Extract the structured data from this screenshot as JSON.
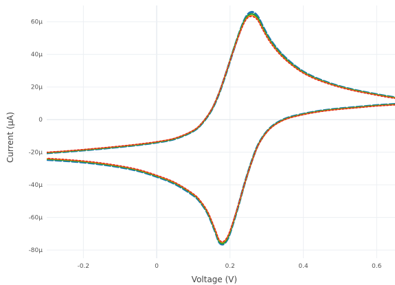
{
  "chart_data": {
    "type": "line",
    "title": "",
    "xlabel": "Voltage (V)",
    "ylabel": "Current (µA)",
    "xlim": [
      -0.3,
      0.65
    ],
    "ylim": [
      -8.5e-05,
      7e-05
    ],
    "grid": true,
    "legend": "none",
    "x_ticks": [
      {
        "value": -0.2,
        "label": "-0.2"
      },
      {
        "value": 0,
        "label": "0"
      },
      {
        "value": 0.2,
        "label": "0.2"
      },
      {
        "value": 0.4,
        "label": "0.4"
      },
      {
        "value": 0.6,
        "label": "0.6"
      }
    ],
    "y_ticks": [
      {
        "value": 6e-05,
        "label": "60µ"
      },
      {
        "value": 4e-05,
        "label": "40µ"
      },
      {
        "value": 2e-05,
        "label": "20µ"
      },
      {
        "value": 0,
        "label": "0"
      },
      {
        "value": -2e-05,
        "label": "-20µ"
      },
      {
        "value": -4e-05,
        "label": "-40µ"
      },
      {
        "value": -6e-05,
        "label": "-60µ"
      },
      {
        "value": -8e-05,
        "label": "-80µ"
      }
    ],
    "series": [
      {
        "color": "#1f77b4",
        "dash": "8 4",
        "width": 3.2,
        "forward": {
          "x": [
            -0.3,
            -0.25,
            -0.2,
            -0.15,
            -0.1,
            -0.05,
            0,
            0.05,
            0.1,
            0.125,
            0.15,
            0.17,
            0.19,
            0.21,
            0.23,
            0.245,
            0.26,
            0.275,
            0.29,
            0.31,
            0.34,
            0.38,
            0.42,
            0.47,
            0.52,
            0.57,
            0.62,
            0.65
          ],
          "y": [
            -2.05e-05,
            -1.97e-05,
            -1.88e-05,
            -1.78e-05,
            -1.67e-05,
            -1.55e-05,
            -1.4e-05,
            -1.18e-05,
            -7e-06,
            -2e-06,
            6e-06,
            1.6e-05,
            2.9e-05,
            4.3e-05,
            5.6e-05,
            6.35e-05,
            6.6e-05,
            6.35e-05,
            5.7e-05,
            4.9e-05,
            4.05e-05,
            3.25e-05,
            2.7e-05,
            2.25e-05,
            1.92e-05,
            1.68e-05,
            1.47e-05,
            1.36e-05
          ]
        },
        "reverse": {
          "x": [
            0.65,
            0.6,
            0.55,
            0.5,
            0.45,
            0.4,
            0.35,
            0.31,
            0.28,
            0.26,
            0.24,
            0.22,
            0.2,
            0.19,
            0.18,
            0.17,
            0.16,
            0.14,
            0.12,
            0.1,
            0.05,
            0,
            -0.05,
            -0.1,
            -0.15,
            -0.2,
            -0.25,
            -0.3
          ],
          "y": [
            9.5e-06,
            8.8e-06,
            7.8e-06,
            6.8e-06,
            5.5e-06,
            3.5e-06,
            5e-07,
            -5e-06,
            -1.4e-05,
            -2.5e-05,
            -3.9e-05,
            -5.5e-05,
            -6.95e-05,
            -7.45e-05,
            -7.65e-05,
            -7.5e-05,
            -6.9e-05,
            -5.8e-05,
            -5.1e-05,
            -4.65e-05,
            -3.95e-05,
            -3.5e-05,
            -3.15e-05,
            -2.92e-05,
            -2.75e-05,
            -2.62e-05,
            -2.53e-05,
            -2.46e-05
          ]
        }
      },
      {
        "color": "#2ca02c",
        "dash": "",
        "width": 2.2,
        "forward": {
          "x": [
            -0.3,
            -0.25,
            -0.2,
            -0.15,
            -0.1,
            -0.05,
            0,
            0.05,
            0.1,
            0.125,
            0.15,
            0.17,
            0.19,
            0.21,
            0.23,
            0.245,
            0.26,
            0.275,
            0.29,
            0.31,
            0.34,
            0.38,
            0.42,
            0.47,
            0.52,
            0.57,
            0.62,
            0.65
          ],
          "y": [
            -2.03e-05,
            -1.95e-05,
            -1.86e-05,
            -1.76e-05,
            -1.65e-05,
            -1.53e-05,
            -1.38e-05,
            -1.16e-05,
            -6.8e-06,
            -1.8e-06,
            6.2e-06,
            1.62e-05,
            2.92e-05,
            4.32e-05,
            5.58e-05,
            6.28e-05,
            6.48e-05,
            6.25e-05,
            5.6e-05,
            4.82e-05,
            3.98e-05,
            3.2e-05,
            2.66e-05,
            2.22e-05,
            1.9e-05,
            1.66e-05,
            1.45e-05,
            1.34e-05
          ]
        },
        "reverse": {
          "x": [
            0.65,
            0.6,
            0.55,
            0.5,
            0.45,
            0.4,
            0.35,
            0.31,
            0.28,
            0.26,
            0.24,
            0.22,
            0.2,
            0.19,
            0.18,
            0.17,
            0.16,
            0.14,
            0.12,
            0.1,
            0.05,
            0,
            -0.05,
            -0.1,
            -0.15,
            -0.2,
            -0.25,
            -0.3
          ],
          "y": [
            9.3e-06,
            8.6e-06,
            7.6e-06,
            6.6e-06,
            5.3e-06,
            3.3e-06,
            3e-07,
            -5.2e-06,
            -1.42e-05,
            -2.52e-05,
            -3.92e-05,
            -5.48e-05,
            -6.9e-05,
            -7.4e-05,
            -7.6e-05,
            -7.45e-05,
            -6.85e-05,
            -5.75e-05,
            -5.05e-05,
            -4.6e-05,
            -3.9e-05,
            -3.46e-05,
            -3.11e-05,
            -2.88e-05,
            -2.71e-05,
            -2.58e-05,
            -2.49e-05,
            -2.42e-05
          ]
        }
      },
      {
        "color": "#ff7f0e",
        "dash": "",
        "width": 1.6,
        "forward": {
          "x": [
            -0.3,
            -0.25,
            -0.2,
            -0.15,
            -0.1,
            -0.05,
            0,
            0.05,
            0.1,
            0.125,
            0.15,
            0.17,
            0.19,
            0.21,
            0.23,
            0.245,
            0.26,
            0.275,
            0.29,
            0.31,
            0.34,
            0.38,
            0.42,
            0.47,
            0.52,
            0.57,
            0.62,
            0.65
          ],
          "y": [
            -2.01e-05,
            -1.93e-05,
            -1.84e-05,
            -1.74e-05,
            -1.63e-05,
            -1.51e-05,
            -1.36e-05,
            -1.14e-05,
            -6.6e-06,
            -1.6e-06,
            6.4e-06,
            1.64e-05,
            2.94e-05,
            4.28e-05,
            5.52e-05,
            6.2e-05,
            6.38e-05,
            6.15e-05,
            5.52e-05,
            4.76e-05,
            3.93e-05,
            3.16e-05,
            2.63e-05,
            2.2e-05,
            1.88e-05,
            1.64e-05,
            1.43e-05,
            1.32e-05
          ]
        },
        "reverse": {
          "x": [
            0.65,
            0.6,
            0.55,
            0.5,
            0.45,
            0.4,
            0.35,
            0.31,
            0.28,
            0.26,
            0.24,
            0.22,
            0.2,
            0.19,
            0.18,
            0.17,
            0.16,
            0.14,
            0.12,
            0.1,
            0.05,
            0,
            -0.05,
            -0.1,
            -0.15,
            -0.2,
            -0.25,
            -0.3
          ],
          "y": [
            9.1e-06,
            8.4e-06,
            7.4e-06,
            6.4e-06,
            5.1e-06,
            3.1e-06,
            1e-07,
            -5.4e-06,
            -1.44e-05,
            -2.54e-05,
            -3.92e-05,
            -5.45e-05,
            -6.83e-05,
            -7.32e-05,
            -7.52e-05,
            -7.38e-05,
            -6.79e-05,
            -5.7e-05,
            -5.02e-05,
            -4.57e-05,
            -3.87e-05,
            -3.43e-05,
            -3.08e-05,
            -2.85e-05,
            -2.68e-05,
            -2.55e-05,
            -2.46e-05,
            -2.39e-05
          ]
        }
      },
      {
        "color": "#d62728",
        "dash": "2 3",
        "width": 1.6,
        "forward": {
          "x": [
            -0.3,
            -0.25,
            -0.2,
            -0.15,
            -0.1,
            -0.05,
            0,
            0.05,
            0.1,
            0.125,
            0.15,
            0.17,
            0.19,
            0.21,
            0.23,
            0.245,
            0.26,
            0.275,
            0.29,
            0.31,
            0.34,
            0.38,
            0.42,
            0.47,
            0.52,
            0.57,
            0.62,
            0.65
          ],
          "y": [
            -2e-05,
            -1.92e-05,
            -1.83e-05,
            -1.73e-05,
            -1.62e-05,
            -1.5e-05,
            -1.35e-05,
            -1.13e-05,
            -6.5e-06,
            -1.5e-06,
            6.5e-06,
            1.65e-05,
            2.95e-05,
            4.26e-05,
            5.48e-05,
            6.16e-05,
            6.32e-05,
            6.1e-05,
            5.48e-05,
            4.72e-05,
            3.9e-05,
            3.14e-05,
            2.61e-05,
            2.18e-05,
            1.86e-05,
            1.62e-05,
            1.41e-05,
            1.3e-05
          ]
        },
        "reverse": {
          "x": [
            0.65,
            0.6,
            0.55,
            0.5,
            0.45,
            0.4,
            0.35,
            0.31,
            0.28,
            0.26,
            0.24,
            0.22,
            0.2,
            0.19,
            0.18,
            0.17,
            0.16,
            0.14,
            0.12,
            0.1,
            0.05,
            0,
            -0.05,
            -0.1,
            -0.15,
            -0.2,
            -0.25,
            -0.3
          ],
          "y": [
            9e-06,
            8.3e-06,
            7.3e-06,
            6.3e-06,
            5e-06,
            3e-06,
            0,
            -5.5e-06,
            -1.45e-05,
            -2.55e-05,
            -3.92e-05,
            -5.43e-05,
            -6.8e-05,
            -7.28e-05,
            -7.48e-05,
            -7.34e-05,
            -6.76e-05,
            -5.68e-05,
            -5e-05,
            -4.55e-05,
            -3.85e-05,
            -3.41e-05,
            -3.06e-05,
            -2.83e-05,
            -2.66e-05,
            -2.53e-05,
            -2.44e-05,
            -2.37e-05
          ]
        }
      }
    ]
  }
}
